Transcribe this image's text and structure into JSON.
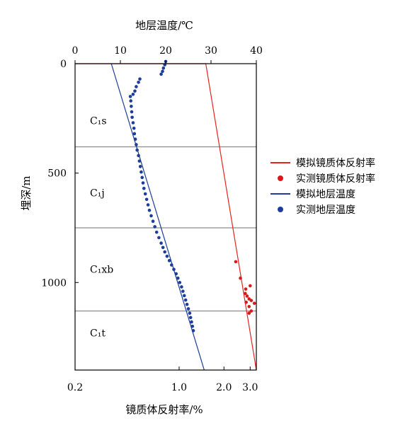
{
  "chart_data": {
    "type": "scatter",
    "title": "",
    "top_axis": {
      "label": "地层温度/℃",
      "range": [
        0,
        40
      ],
      "ticks": [
        0,
        10,
        20,
        30,
        40
      ]
    },
    "bottom_axis": {
      "label": "镜质体反射率/%",
      "scale": "log",
      "range": [
        0.2,
        3.3
      ],
      "tick_labels": [
        "0.2",
        "1.0",
        "2.0",
        "3.0"
      ],
      "tick_values": [
        0.2,
        1.0,
        2.0,
        3.0
      ]
    },
    "left_axis": {
      "label": "埋深/m",
      "range": [
        0,
        1400
      ],
      "inverted": true,
      "ticks": [
        0,
        500,
        1000
      ]
    },
    "formations": [
      {
        "label": "C₁s",
        "depth_center": 260
      },
      {
        "label": "C₁j",
        "depth_center": 590
      },
      {
        "label": "C₁xb",
        "depth_center": 940
      },
      {
        "label": "C₁t",
        "depth_center": 1230
      }
    ],
    "formation_boundaries": [
      380,
      750,
      1130
    ],
    "legend": {
      "placement": "right",
      "entries": [
        {
          "label": "模拟镜质体反射率",
          "kind": "line",
          "color": "#e8231f"
        },
        {
          "label": "实测镜质体反射率",
          "kind": "point",
          "color": "#d7191c"
        },
        {
          "label": "模拟地层温度",
          "kind": "line",
          "color": "#1c3d99"
        },
        {
          "label": "实测地层温度",
          "kind": "point",
          "color": "#1c3d99"
        }
      ]
    },
    "series": [
      {
        "name": "模拟镜质体反射率",
        "axis": "bottom",
        "kind": "line",
        "color": "#e8231f",
        "points": [
          [
            0.2,
            0
          ],
          [
            1.51,
            0
          ],
          [
            3.3,
            1400
          ]
        ]
      },
      {
        "name": "实测镜质体反射率",
        "axis": "bottom",
        "kind": "points",
        "color": "#d7191c",
        "points": [
          [
            2.4,
            905
          ],
          [
            2.58,
            980
          ],
          [
            2.8,
            1030
          ],
          [
            3.0,
            1015
          ],
          [
            2.78,
            1050
          ],
          [
            2.86,
            1062
          ],
          [
            2.95,
            1075
          ],
          [
            3.05,
            1082
          ],
          [
            2.82,
            1090
          ],
          [
            3.2,
            1095
          ],
          [
            2.95,
            1110
          ],
          [
            3.05,
            1130
          ],
          [
            2.95,
            1140
          ]
        ]
      },
      {
        "name": "模拟地层温度",
        "axis": "top",
        "kind": "line",
        "color": "#1c3d99",
        "points": [
          [
            8.0,
            0
          ],
          [
            28.5,
            1400
          ]
        ]
      },
      {
        "name": "实测地层温度",
        "axis": "top",
        "kind": "points",
        "color": "#1c3d99",
        "points": [
          [
            20.0,
            -10
          ],
          [
            19.8,
            5
          ],
          [
            19.5,
            20
          ],
          [
            19.3,
            35
          ],
          [
            19.0,
            48
          ],
          [
            14.3,
            70
          ],
          [
            14.0,
            85
          ],
          [
            13.5,
            105
          ],
          [
            13.2,
            125
          ],
          [
            12.8,
            140
          ],
          [
            12.2,
            150
          ],
          [
            12.3,
            170
          ],
          [
            12.4,
            195
          ],
          [
            12.5,
            220
          ],
          [
            12.6,
            245
          ],
          [
            12.8,
            270
          ],
          [
            13.0,
            295
          ],
          [
            13.1,
            320
          ],
          [
            13.3,
            345
          ],
          [
            13.5,
            370
          ],
          [
            13.7,
            395
          ],
          [
            14.0,
            420
          ],
          [
            14.2,
            445
          ],
          [
            14.4,
            470
          ],
          [
            14.6,
            495
          ],
          [
            14.8,
            520
          ],
          [
            15.0,
            545
          ],
          [
            15.2,
            570
          ],
          [
            15.5,
            595
          ],
          [
            15.8,
            620
          ],
          [
            16.1,
            645
          ],
          [
            16.4,
            670
          ],
          [
            16.8,
            695
          ],
          [
            17.2,
            720
          ],
          [
            17.6,
            745
          ],
          [
            18.0,
            770
          ],
          [
            18.5,
            795
          ],
          [
            19.0,
            820
          ],
          [
            19.4,
            840
          ],
          [
            19.8,
            860
          ],
          [
            20.3,
            880
          ],
          [
            20.8,
            900
          ],
          [
            21.3,
            920
          ],
          [
            21.8,
            940
          ],
          [
            22.3,
            960
          ],
          [
            22.7,
            980
          ],
          [
            23.1,
            1000
          ],
          [
            23.5,
            1020
          ],
          [
            23.8,
            1040
          ],
          [
            24.1,
            1060
          ],
          [
            24.4,
            1080
          ],
          [
            24.7,
            1100
          ],
          [
            25.0,
            1120
          ],
          [
            25.3,
            1140
          ],
          [
            25.5,
            1160
          ],
          [
            25.7,
            1180
          ],
          [
            25.9,
            1200
          ],
          [
            26.1,
            1220
          ]
        ]
      }
    ]
  }
}
